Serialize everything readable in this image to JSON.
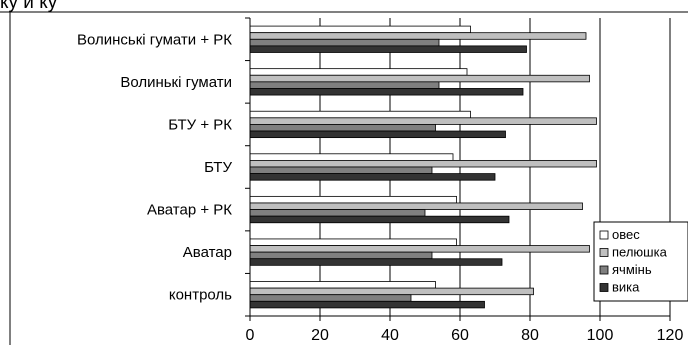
{
  "top_fragment": "ку и ку",
  "chart_data": {
    "type": "bar",
    "orientation": "horizontal",
    "categories": [
      "Волинські гумати + РК",
      "Волинькі гумати",
      "БТУ + РК",
      "БТУ",
      "Аватар + РК",
      "Аватар",
      "контроль"
    ],
    "series": [
      {
        "name": "овес",
        "color": "#ffffff",
        "values": [
          63,
          62,
          63,
          58,
          59,
          59,
          53
        ]
      },
      {
        "name": "пелюшка",
        "color": "#bfbfbf",
        "values": [
          96,
          97,
          99,
          99,
          95,
          97,
          81
        ]
      },
      {
        "name": "ячмінь",
        "color": "#7f7f7f",
        "values": [
          54,
          54,
          53,
          52,
          50,
          52,
          46
        ]
      },
      {
        "name": "вика",
        "color": "#333333",
        "values": [
          79,
          78,
          73,
          70,
          74,
          72,
          67
        ]
      }
    ],
    "xlim": [
      0,
      120
    ],
    "xticks": [
      "0",
      "20",
      "40",
      "60",
      "80",
      "100",
      "120"
    ],
    "grid": true,
    "legend_position": "bottom-right"
  }
}
